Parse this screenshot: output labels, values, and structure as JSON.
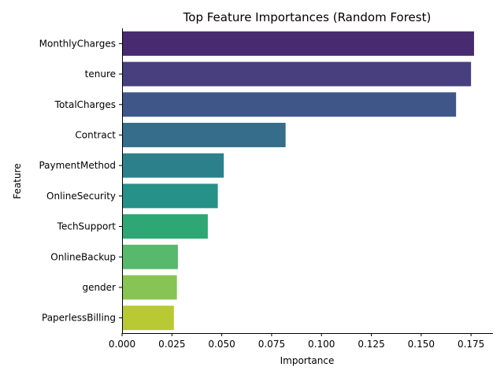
{
  "chart_data": {
    "type": "bar",
    "orientation": "horizontal",
    "title": "Top Feature Importances (Random Forest)",
    "xlabel": "Importance",
    "ylabel": "Feature",
    "categories": [
      "MonthlyCharges",
      "tenure",
      "TotalCharges",
      "Contract",
      "PaymentMethod",
      "OnlineSecurity",
      "TechSupport",
      "OnlineBackup",
      "gender",
      "PaperlessBilling"
    ],
    "values": [
      0.1765,
      0.175,
      0.1675,
      0.082,
      0.051,
      0.048,
      0.043,
      0.028,
      0.0275,
      0.026
    ],
    "colors": [
      "#472a6f",
      "#483f7f",
      "#3f5689",
      "#356d8b",
      "#2c808c",
      "#259188",
      "#2ea774",
      "#58b86b",
      "#87c454",
      "#b9c933"
    ],
    "xlim": [
      0,
      0.186
    ],
    "xticks": [
      "0.000",
      "0.025",
      "0.050",
      "0.075",
      "0.100",
      "0.125",
      "0.150",
      "0.175"
    ],
    "grid": false,
    "legend": "none"
  }
}
